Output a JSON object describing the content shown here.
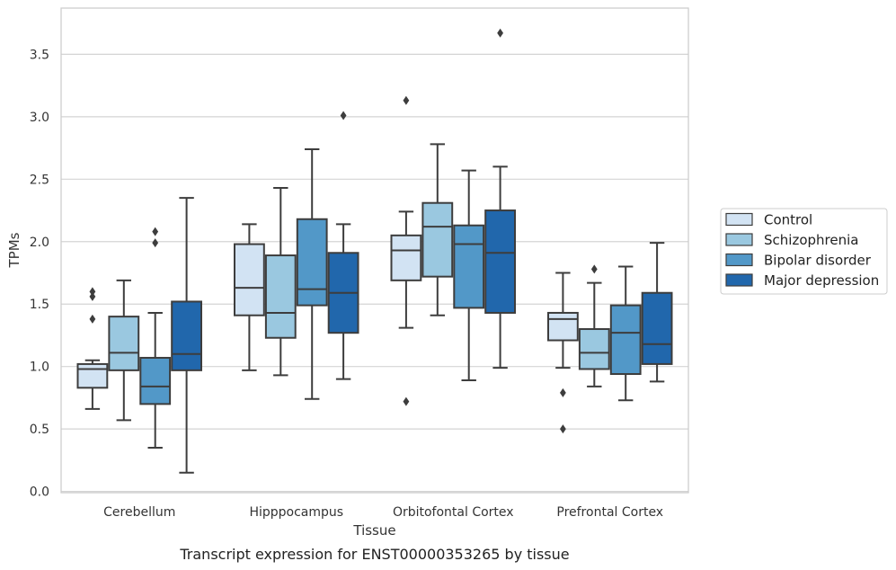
{
  "chart_data": {
    "type": "boxplot",
    "caption": "Transcript expression for ENST00000353265 by tissue",
    "xlabel": "Tissue",
    "ylabel": "TPMs",
    "ylim": [
      -0.01,
      3.87
    ],
    "yticks": [
      "0.0",
      "0.5",
      "1.0",
      "1.5",
      "2.0",
      "2.5",
      "3.0",
      "3.5"
    ],
    "grid": true,
    "legend_position": "right",
    "categories": [
      "Cerebellum",
      "Hipppocampus",
      "Orbitofontal Cortex",
      "Prefrontal Cortex"
    ],
    "series": [
      {
        "name": "Control",
        "color": "#d2e3f3",
        "boxes": [
          {
            "whisker_low": 0.66,
            "q1": 0.83,
            "median": 0.98,
            "q3": 1.02,
            "whisker_high": 1.05,
            "outliers": [
              1.38,
              1.56,
              1.6
            ]
          },
          {
            "whisker_low": 0.97,
            "q1": 1.41,
            "median": 1.63,
            "q3": 1.98,
            "whisker_high": 2.14,
            "outliers": []
          },
          {
            "whisker_low": 1.31,
            "q1": 1.69,
            "median": 1.93,
            "q3": 2.05,
            "whisker_high": 2.24,
            "outliers": [
              0.72,
              3.13
            ]
          },
          {
            "whisker_low": 0.99,
            "q1": 1.21,
            "median": 1.38,
            "q3": 1.43,
            "whisker_high": 1.75,
            "outliers": [
              0.5,
              0.79
            ]
          }
        ]
      },
      {
        "name": "Schizophrenia",
        "color": "#9ac8e0",
        "boxes": [
          {
            "whisker_low": 0.57,
            "q1": 0.97,
            "median": 1.11,
            "q3": 1.4,
            "whisker_high": 1.69,
            "outliers": []
          },
          {
            "whisker_low": 0.93,
            "q1": 1.23,
            "median": 1.43,
            "q3": 1.89,
            "whisker_high": 2.43,
            "outliers": []
          },
          {
            "whisker_low": 1.41,
            "q1": 1.72,
            "median": 2.12,
            "q3": 2.31,
            "whisker_high": 2.78,
            "outliers": []
          },
          {
            "whisker_low": 0.84,
            "q1": 0.98,
            "median": 1.11,
            "q3": 1.3,
            "whisker_high": 1.67,
            "outliers": [
              1.78
            ]
          }
        ]
      },
      {
        "name": "Bipolar disorder",
        "color": "#5298c8",
        "boxes": [
          {
            "whisker_low": 0.35,
            "q1": 0.7,
            "median": 0.84,
            "q3": 1.07,
            "whisker_high": 1.43,
            "outliers": [
              1.99,
              2.08
            ]
          },
          {
            "whisker_low": 0.74,
            "q1": 1.49,
            "median": 1.62,
            "q3": 2.18,
            "whisker_high": 2.74,
            "outliers": []
          },
          {
            "whisker_low": 0.89,
            "q1": 1.47,
            "median": 1.98,
            "q3": 2.13,
            "whisker_high": 2.57,
            "outliers": []
          },
          {
            "whisker_low": 0.73,
            "q1": 0.94,
            "median": 1.27,
            "q3": 1.49,
            "whisker_high": 1.8,
            "outliers": []
          }
        ]
      },
      {
        "name": "Major depression",
        "color": "#2167ac",
        "boxes": [
          {
            "whisker_low": 0.15,
            "q1": 0.97,
            "median": 1.1,
            "q3": 1.52,
            "whisker_high": 2.35,
            "outliers": []
          },
          {
            "whisker_low": 0.9,
            "q1": 1.27,
            "median": 1.59,
            "q3": 1.91,
            "whisker_high": 2.14,
            "outliers": [
              3.01
            ]
          },
          {
            "whisker_low": 0.99,
            "q1": 1.43,
            "median": 1.91,
            "q3": 2.25,
            "whisker_high": 2.6,
            "outliers": [
              3.67
            ]
          },
          {
            "whisker_low": 0.88,
            "q1": 1.02,
            "median": 1.18,
            "q3": 1.59,
            "whisker_high": 1.99,
            "outliers": []
          }
        ]
      }
    ]
  }
}
